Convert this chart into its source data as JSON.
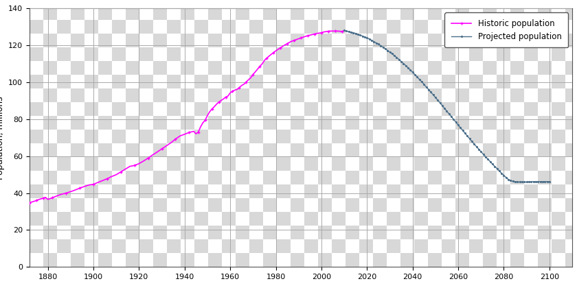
{
  "title": "",
  "ylabel": "Population, millions",
  "xlabel": "",
  "xlim": [
    1872,
    2110
  ],
  "ylim": [
    0,
    140
  ],
  "yticks": [
    0,
    20,
    40,
    60,
    80,
    100,
    120,
    140
  ],
  "xticks": [
    1880,
    1900,
    1920,
    1940,
    1960,
    1980,
    2000,
    2020,
    2040,
    2060,
    2080,
    2100
  ],
  "grid_color": "#aaaaaa",
  "historic_color": "#ff00ff",
  "projected_color": "#4a6e8a",
  "historic_label": "Historic population",
  "projected_label": "Projected population",
  "checker_light": "#ffffff",
  "checker_dark": "#d8d8d8",
  "checker_size": 20,
  "historic_data": [
    [
      1872,
      34.8
    ],
    [
      1873,
      35.2
    ],
    [
      1874,
      35.6
    ],
    [
      1875,
      36.0
    ],
    [
      1876,
      36.5
    ],
    [
      1877,
      36.9
    ],
    [
      1878,
      37.3
    ],
    [
      1879,
      37.7
    ],
    [
      1880,
      36.6
    ],
    [
      1882,
      37.5
    ],
    [
      1884,
      38.5
    ],
    [
      1886,
      39.4
    ],
    [
      1888,
      40.0
    ],
    [
      1890,
      40.8
    ],
    [
      1892,
      41.7
    ],
    [
      1894,
      42.7
    ],
    [
      1896,
      43.6
    ],
    [
      1898,
      44.4
    ],
    [
      1900,
      44.8
    ],
    [
      1902,
      45.8
    ],
    [
      1904,
      46.8
    ],
    [
      1906,
      47.8
    ],
    [
      1908,
      49.0
    ],
    [
      1910,
      50.0
    ],
    [
      1912,
      51.5
    ],
    [
      1914,
      53.0
    ],
    [
      1916,
      54.5
    ],
    [
      1918,
      55.0
    ],
    [
      1920,
      56.0
    ],
    [
      1922,
      57.4
    ],
    [
      1924,
      59.0
    ],
    [
      1926,
      60.7
    ],
    [
      1928,
      62.3
    ],
    [
      1930,
      64.0
    ],
    [
      1932,
      65.6
    ],
    [
      1934,
      67.3
    ],
    [
      1936,
      69.3
    ],
    [
      1938,
      71.0
    ],
    [
      1940,
      71.9
    ],
    [
      1942,
      72.9
    ],
    [
      1944,
      73.5
    ],
    [
      1945,
      72.1
    ],
    [
      1946,
      73.1
    ],
    [
      1947,
      75.9
    ],
    [
      1948,
      78.1
    ],
    [
      1949,
      79.5
    ],
    [
      1950,
      82.0
    ],
    [
      1951,
      84.1
    ],
    [
      1952,
      85.6
    ],
    [
      1953,
      86.8
    ],
    [
      1954,
      88.2
    ],
    [
      1955,
      89.3
    ],
    [
      1956,
      90.2
    ],
    [
      1957,
      91.0
    ],
    [
      1958,
      92.0
    ],
    [
      1959,
      92.6
    ],
    [
      1960,
      94.3
    ],
    [
      1961,
      95.2
    ],
    [
      1962,
      95.8
    ],
    [
      1963,
      96.2
    ],
    [
      1964,
      97.2
    ],
    [
      1965,
      98.3
    ],
    [
      1966,
      99.0
    ],
    [
      1967,
      100.2
    ],
    [
      1968,
      101.4
    ],
    [
      1969,
      102.5
    ],
    [
      1970,
      104.3
    ],
    [
      1971,
      105.7
    ],
    [
      1972,
      107.2
    ],
    [
      1973,
      108.7
    ],
    [
      1974,
      110.0
    ],
    [
      1975,
      111.9
    ],
    [
      1976,
      113.1
    ],
    [
      1977,
      114.2
    ],
    [
      1978,
      115.2
    ],
    [
      1979,
      116.2
    ],
    [
      1980,
      117.1
    ],
    [
      1981,
      117.9
    ],
    [
      1982,
      118.7
    ],
    [
      1983,
      119.5
    ],
    [
      1984,
      120.3
    ],
    [
      1985,
      121.0
    ],
    [
      1986,
      121.7
    ],
    [
      1987,
      122.3
    ],
    [
      1988,
      122.7
    ],
    [
      1989,
      123.2
    ],
    [
      1990,
      123.6
    ],
    [
      1991,
      124.1
    ],
    [
      1992,
      124.5
    ],
    [
      1993,
      124.9
    ],
    [
      1994,
      125.3
    ],
    [
      1995,
      125.6
    ],
    [
      1996,
      125.9
    ],
    [
      1997,
      126.2
    ],
    [
      1998,
      126.5
    ],
    [
      1999,
      126.7
    ],
    [
      2000,
      126.9
    ],
    [
      2001,
      127.3
    ],
    [
      2002,
      127.5
    ],
    [
      2003,
      127.7
    ],
    [
      2004,
      127.8
    ],
    [
      2005,
      127.8
    ],
    [
      2006,
      127.8
    ],
    [
      2007,
      127.8
    ],
    [
      2008,
      127.7
    ],
    [
      2009,
      127.5
    ],
    [
      2010,
      128.1
    ]
  ],
  "projected_data": [
    [
      2010,
      128.1
    ],
    [
      2011,
      127.8
    ],
    [
      2012,
      127.5
    ],
    [
      2013,
      127.2
    ],
    [
      2014,
      126.9
    ],
    [
      2015,
      126.5
    ],
    [
      2016,
      126.1
    ],
    [
      2017,
      125.6
    ],
    [
      2018,
      125.1
    ],
    [
      2019,
      124.6
    ],
    [
      2020,
      124.1
    ],
    [
      2021,
      123.5
    ],
    [
      2022,
      122.8
    ],
    [
      2023,
      122.1
    ],
    [
      2024,
      121.4
    ],
    [
      2025,
      120.7
    ],
    [
      2026,
      119.9
    ],
    [
      2027,
      119.1
    ],
    [
      2028,
      118.2
    ],
    [
      2029,
      117.3
    ],
    [
      2030,
      116.4
    ],
    [
      2031,
      115.5
    ],
    [
      2032,
      114.5
    ],
    [
      2033,
      113.5
    ],
    [
      2034,
      112.4
    ],
    [
      2035,
      111.3
    ],
    [
      2036,
      110.2
    ],
    [
      2037,
      109.1
    ],
    [
      2038,
      107.9
    ],
    [
      2039,
      106.7
    ],
    [
      2040,
      105.5
    ],
    [
      2041,
      104.2
    ],
    [
      2042,
      102.9
    ],
    [
      2043,
      101.6
    ],
    [
      2044,
      100.3
    ],
    [
      2045,
      98.9
    ],
    [
      2046,
      97.5
    ],
    [
      2047,
      96.1
    ],
    [
      2048,
      94.7
    ],
    [
      2049,
      93.3
    ],
    [
      2050,
      91.8
    ],
    [
      2051,
      90.4
    ],
    [
      2052,
      88.9
    ],
    [
      2053,
      87.4
    ],
    [
      2054,
      85.9
    ],
    [
      2055,
      84.4
    ],
    [
      2056,
      82.9
    ],
    [
      2057,
      81.4
    ],
    [
      2058,
      79.9
    ],
    [
      2059,
      78.4
    ],
    [
      2060,
      76.9
    ],
    [
      2061,
      75.4
    ],
    [
      2062,
      73.9
    ],
    [
      2063,
      72.4
    ],
    [
      2064,
      70.9
    ],
    [
      2065,
      69.5
    ],
    [
      2066,
      68.0
    ],
    [
      2067,
      66.6
    ],
    [
      2068,
      65.2
    ],
    [
      2069,
      63.8
    ],
    [
      2070,
      62.4
    ],
    [
      2071,
      61.1
    ],
    [
      2072,
      59.7
    ],
    [
      2073,
      58.4
    ],
    [
      2074,
      57.1
    ],
    [
      2075,
      55.8
    ],
    [
      2076,
      54.5
    ],
    [
      2077,
      53.3
    ],
    [
      2078,
      52.0
    ],
    [
      2079,
      50.8
    ],
    [
      2080,
      49.6
    ],
    [
      2081,
      48.5
    ],
    [
      2082,
      47.4
    ],
    [
      2083,
      46.8
    ],
    [
      2084,
      46.4
    ],
    [
      2085,
      46.2
    ],
    [
      2086,
      46.1
    ],
    [
      2087,
      46.0
    ],
    [
      2088,
      46.0
    ],
    [
      2089,
      46.0
    ],
    [
      2090,
      46.0
    ],
    [
      2091,
      46.1
    ],
    [
      2092,
      46.1
    ],
    [
      2093,
      46.2
    ],
    [
      2094,
      46.2
    ],
    [
      2095,
      46.2
    ],
    [
      2096,
      46.2
    ],
    [
      2097,
      46.2
    ],
    [
      2098,
      46.2
    ],
    [
      2099,
      46.2
    ],
    [
      2100,
      46.2
    ]
  ]
}
